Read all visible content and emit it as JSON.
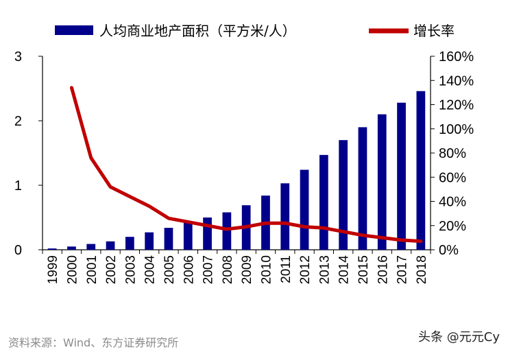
{
  "chart_data": {
    "type": "bar",
    "categories": [
      "1999",
      "2000",
      "2001",
      "2002",
      "2003",
      "2004",
      "2005",
      "2006",
      "2007",
      "2008",
      "2009",
      "2010",
      "2011",
      "2012",
      "2013",
      "2014",
      "2015",
      "2016",
      "2017",
      "2018"
    ],
    "series": [
      {
        "name": "人均商业地产面积（平方米/人）",
        "type": "bar",
        "axis": "left",
        "color": "#00008b",
        "values": [
          0.02,
          0.05,
          0.09,
          0.13,
          0.2,
          0.27,
          0.34,
          0.42,
          0.5,
          0.58,
          0.69,
          0.84,
          1.03,
          1.24,
          1.47,
          1.7,
          1.9,
          2.1,
          2.28,
          2.46
        ]
      },
      {
        "name": "增长率",
        "type": "line",
        "axis": "right",
        "color": "#c00000",
        "values": [
          null,
          134,
          76,
          52,
          44,
          36,
          26,
          23,
          20,
          17,
          19,
          22,
          22,
          19,
          18,
          15,
          12,
          10,
          8,
          7
        ]
      }
    ],
    "ylim_left": [
      0,
      3
    ],
    "yticks_left": [
      "0",
      "1",
      "2",
      "3"
    ],
    "ylim_right": [
      0,
      160
    ],
    "yticks_right": [
      "0%",
      "20%",
      "40%",
      "60%",
      "80%",
      "100%",
      "120%",
      "140%",
      "160%"
    ],
    "legend_position": "top"
  },
  "footer": {
    "source": "资料来源：Wind、东方证券研究所",
    "watermark": "头条 @元元Cy"
  }
}
